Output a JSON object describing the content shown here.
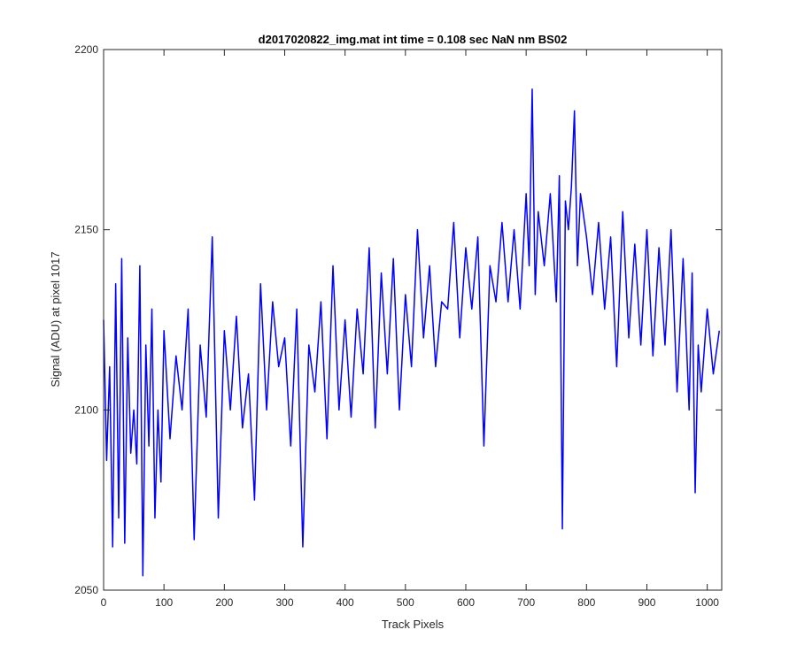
{
  "chart_data": {
    "type": "line",
    "title": "d2017020822_img.mat int time = 0.108 sec  NaN nm BS02",
    "xlabel": "Track Pixels",
    "ylabel": "Signal (ADU) at pixel 1017",
    "xlim": [
      0,
      1024
    ],
    "ylim": [
      2050,
      2200
    ],
    "x_ticks": [
      0,
      100,
      200,
      300,
      400,
      500,
      600,
      700,
      800,
      900,
      1000
    ],
    "y_ticks": [
      2050,
      2100,
      2150,
      2200
    ],
    "x_tick_labels": [
      "0",
      "100",
      "200",
      "300",
      "400",
      "500",
      "600",
      "700",
      "800",
      "900",
      "1000"
    ],
    "y_tick_labels": [
      "2050",
      "2100",
      "2150",
      "2200"
    ],
    "grid": false,
    "legend": "none",
    "series": [
      {
        "color": "#0000ff",
        "x": [
          0,
          5,
          10,
          15,
          20,
          25,
          30,
          35,
          40,
          45,
          50,
          55,
          60,
          65,
          70,
          75,
          80,
          85,
          90,
          95,
          100,
          110,
          120,
          130,
          140,
          150,
          160,
          170,
          180,
          190,
          200,
          210,
          220,
          230,
          240,
          250,
          260,
          270,
          280,
          290,
          300,
          310,
          320,
          330,
          340,
          350,
          360,
          370,
          380,
          390,
          400,
          410,
          420,
          430,
          440,
          450,
          460,
          470,
          480,
          490,
          500,
          510,
          520,
          530,
          540,
          550,
          560,
          570,
          580,
          590,
          600,
          610,
          620,
          630,
          640,
          650,
          660,
          670,
          680,
          690,
          700,
          705,
          710,
          715,
          720,
          730,
          740,
          750,
          755,
          760,
          765,
          770,
          775,
          780,
          785,
          790,
          800,
          810,
          820,
          830,
          840,
          850,
          860,
          870,
          880,
          890,
          900,
          910,
          920,
          930,
          940,
          950,
          960,
          970,
          975,
          980,
          985,
          990,
          1000,
          1010,
          1020
        ],
        "y": [
          2125,
          2086,
          2112,
          2062,
          2135,
          2070,
          2142,
          2063,
          2120,
          2088,
          2100,
          2085,
          2140,
          2054,
          2118,
          2090,
          2128,
          2070,
          2100,
          2080,
          2122,
          2092,
          2115,
          2100,
          2128,
          2064,
          2118,
          2098,
          2148,
          2070,
          2122,
          2100,
          2126,
          2095,
          2110,
          2075,
          2135,
          2100,
          2130,
          2112,
          2120,
          2090,
          2128,
          2062,
          2118,
          2105,
          2130,
          2092,
          2140,
          2100,
          2125,
          2098,
          2128,
          2110,
          2145,
          2095,
          2138,
          2110,
          2142,
          2100,
          2132,
          2112,
          2150,
          2120,
          2140,
          2112,
          2130,
          2128,
          2152,
          2120,
          2145,
          2128,
          2148,
          2090,
          2140,
          2130,
          2152,
          2130,
          2150,
          2128,
          2160,
          2140,
          2189,
          2132,
          2155,
          2140,
          2160,
          2130,
          2165,
          2067,
          2158,
          2150,
          2162,
          2183,
          2140,
          2160,
          2148,
          2132,
          2152,
          2128,
          2148,
          2112,
          2155,
          2120,
          2146,
          2118,
          2150,
          2115,
          2145,
          2118,
          2150,
          2105,
          2142,
          2100,
          2138,
          2077,
          2118,
          2105,
          2128,
          2110,
          2122
        ]
      }
    ]
  }
}
